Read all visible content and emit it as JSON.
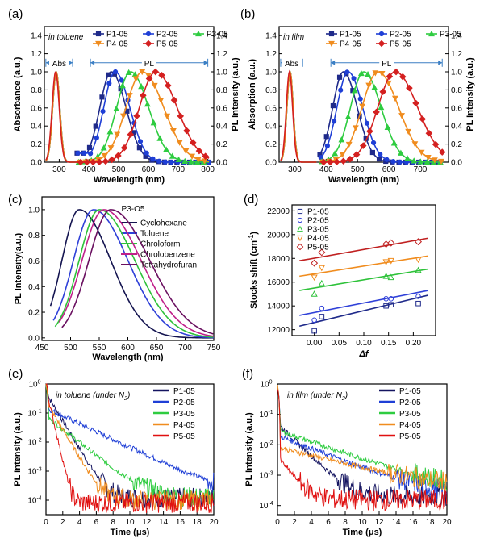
{
  "chart_data": [
    {
      "panel": "(a)",
      "type": "line",
      "note": "in toluene",
      "xlabel": "Wavelength (nm)",
      "ylabel": "Absorbance (a.u.)",
      "y2label": "PL Intensity (a.u.)",
      "xlim": [
        250,
        820
      ],
      "xticks": [
        300,
        400,
        500,
        600,
        700,
        800
      ],
      "ylim": [
        0,
        1.5
      ],
      "yticks": [
        "0.0",
        "0.2",
        "0.4",
        "0.6",
        "0.8",
        "1.0",
        "1.2",
        "1.4"
      ],
      "regions": [
        {
          "label": "Abs",
          "from": 255,
          "to": 345
        },
        {
          "label": "PL",
          "from": 405,
          "to": 800
        }
      ],
      "series": [
        {
          "name": "P1-05",
          "color": "#1f2a8a",
          "marker": "square",
          "abs_peak": 290,
          "abs_width": 12,
          "pl_peak": 475,
          "pl_width": 45
        },
        {
          "name": "P2-05",
          "color": "#1f3fd6",
          "marker": "circle",
          "abs_peak": 290,
          "abs_width": 12,
          "pl_peak": 488,
          "pl_width": 45
        },
        {
          "name": "P3-05",
          "color": "#2ecc40",
          "marker": "triangle-up",
          "abs_peak": 290,
          "abs_width": 12,
          "pl_peak": 540,
          "pl_width": 55
        },
        {
          "name": "P4-05",
          "color": "#f08c1e",
          "marker": "triangle-down",
          "abs_peak": 290,
          "abs_width": 12,
          "pl_peak": 580,
          "pl_width": 65
        },
        {
          "name": "P5-05",
          "color": "#d42020",
          "marker": "diamond",
          "abs_peak": 288,
          "abs_width": 12,
          "pl_peak": 625,
          "pl_width": 65
        }
      ]
    },
    {
      "panel": "(b)",
      "type": "line",
      "note": "in film",
      "xlabel": "Wavelength (nm)",
      "ylabel": "Absorption (a.u.)",
      "y2label": "PL Intensity (a.u.)",
      "xlim": [
        250,
        790
      ],
      "xticks": [
        300,
        400,
        500,
        600,
        700
      ],
      "ylim": [
        0,
        1.5
      ],
      "yticks": [
        "0.0",
        "0.2",
        "0.4",
        "0.6",
        "0.8",
        "1.0",
        "1.2",
        "1.4"
      ],
      "regions": [
        {
          "label": "Abs",
          "from": 255,
          "to": 325
        },
        {
          "label": "PL",
          "from": 415,
          "to": 770
        }
      ],
      "series": [
        {
          "name": "P1-05",
          "color": "#1f2a8a",
          "marker": "square",
          "abs_peak": 285,
          "abs_width": 10,
          "pl_peak": 455,
          "pl_width": 40
        },
        {
          "name": "P2-05",
          "color": "#1f3fd6",
          "marker": "circle",
          "abs_peak": 285,
          "abs_width": 10,
          "pl_peak": 470,
          "pl_width": 42
        },
        {
          "name": "P3-05",
          "color": "#2ecc40",
          "marker": "triangle-up",
          "abs_peak": 285,
          "abs_width": 10,
          "pl_peak": 520,
          "pl_width": 50
        },
        {
          "name": "P4-05",
          "color": "#f08c1e",
          "marker": "triangle-down",
          "abs_peak": 285,
          "abs_width": 10,
          "pl_peak": 565,
          "pl_width": 60
        },
        {
          "name": "P5-05",
          "color": "#d42020",
          "marker": "diamond",
          "abs_peak": 283,
          "abs_width": 10,
          "pl_peak": 620,
          "pl_width": 65
        }
      ]
    },
    {
      "panel": "(c)",
      "type": "line",
      "title": "P3-O5",
      "xlabel": "Wavelength (nm)",
      "ylabel": "PL Intensity(a.u.)",
      "xlim": [
        450,
        750
      ],
      "xticks": [
        450,
        500,
        550,
        600,
        650,
        700,
        750
      ],
      "ylim": [
        -0.02,
        1.1
      ],
      "yticks": [
        "0.0",
        "0.2",
        "0.4",
        "0.6",
        "0.8",
        "1.0"
      ],
      "series": [
        {
          "name": "Cyclohexane",
          "color": "#141450",
          "peak": 515,
          "x_start": 465,
          "width_left": 30,
          "width_right": 55
        },
        {
          "name": "Toluene",
          "color": "#2f40d8",
          "peak": 540,
          "x_start": 470,
          "width_left": 35,
          "width_right": 60
        },
        {
          "name": "Chroloform",
          "color": "#2ec23a",
          "peak": 550,
          "x_start": 473,
          "width_left": 35,
          "width_right": 62
        },
        {
          "name": "Chrolobenzene",
          "color": "#c0208a",
          "peak": 558,
          "x_start": 480,
          "width_left": 38,
          "width_right": 65
        },
        {
          "name": "Tetrahydrofuran",
          "color": "#6a1060",
          "peak": 570,
          "x_start": 485,
          "width_left": 38,
          "width_right": 68
        }
      ]
    },
    {
      "panel": "(d)",
      "type": "scatter",
      "xlabel": "Δf",
      "ylabel": "Stocks shift (cm",
      "ylabel_sup": "-1",
      "ylabel_end": ")",
      "xlim": [
        -0.045,
        0.245
      ],
      "xticks": [
        "0.00",
        "0.05",
        "0.10",
        "0.15",
        "0.20"
      ],
      "xtick_values": [
        0.0,
        0.05,
        0.1,
        0.15,
        0.2
      ],
      "ylim": [
        11500,
        22500
      ],
      "yticks": [
        12000,
        14000,
        16000,
        18000,
        20000,
        22000
      ],
      "fit_x": [
        -0.03,
        0.23
      ],
      "series": [
        {
          "name": "P1-05",
          "color": "#1f2a8a",
          "marker": "square",
          "x": [
            0.0,
            0.015,
            0.145,
            0.155,
            0.21
          ],
          "y": [
            11900,
            13100,
            14000,
            14100,
            14200
          ],
          "fit": [
            12300,
            14900
          ]
        },
        {
          "name": "P2-05",
          "color": "#2f40d8",
          "marker": "circle",
          "x": [
            0.0,
            0.015,
            0.145,
            0.155,
            0.21
          ],
          "y": [
            12800,
            13800,
            14600,
            14600,
            14800
          ],
          "fit": [
            13200,
            15300
          ]
        },
        {
          "name": "P3-05",
          "color": "#2ec23a",
          "marker": "triangle-up",
          "x": [
            0.0,
            0.015,
            0.145,
            0.155,
            0.21
          ],
          "y": [
            15000,
            15900,
            16500,
            16400,
            17000
          ],
          "fit": [
            15300,
            17100
          ]
        },
        {
          "name": "P4-05",
          "color": "#f08c1e",
          "marker": "triangle-down",
          "x": [
            0.0,
            0.015,
            0.145,
            0.155,
            0.21
          ],
          "y": [
            16400,
            17200,
            17700,
            17800,
            17900
          ],
          "fit": [
            16500,
            18200
          ]
        },
        {
          "name": "P5-05",
          "color": "#c02020",
          "marker": "diamond",
          "x": [
            0.0,
            0.015,
            0.145,
            0.155,
            0.21
          ],
          "y": [
            17600,
            18500,
            19200,
            19300,
            19400
          ],
          "fit": [
            17800,
            19700
          ]
        }
      ]
    },
    {
      "panel": "(e)",
      "type": "line",
      "scale": "log",
      "note": "in toluene (under N",
      "note_sub": "2",
      "note_end": ")",
      "xlabel": "Time (μs)",
      "ylabel": "PL Intensity (a.u.)",
      "xlim": [
        0,
        20
      ],
      "xticks": [
        0,
        2,
        4,
        6,
        8,
        10,
        12,
        14,
        16,
        18,
        20
      ],
      "ylim_exp": [
        -4.5,
        0
      ],
      "yticks": [
        {
          "base": "10",
          "exp": "0",
          "value": 0
        },
        {
          "base": "10",
          "exp": "-1",
          "value": -1
        },
        {
          "base": "10",
          "exp": "-2",
          "value": -2
        },
        {
          "base": "10",
          "exp": "-3",
          "value": -3
        },
        {
          "base": "10",
          "exp": "-4",
          "value": -4
        }
      ],
      "series": [
        {
          "name": "P1-05",
          "color": "#141460",
          "tau": 0.9,
          "amp": 0.5,
          "floor": 0.00012
        },
        {
          "name": "P2-05",
          "color": "#1f3fd6",
          "tau": 3.2,
          "amp": 0.15,
          "floor": 0.00012
        },
        {
          "name": "P3-05",
          "color": "#2ecc40",
          "tau": 1.9,
          "amp": 0.08,
          "floor": 0.00012
        },
        {
          "name": "P4-05",
          "color": "#f08c1e",
          "tau": 0.9,
          "amp": 0.25,
          "floor": 0.0001
        },
        {
          "name": "P5-05",
          "color": "#e01010",
          "tau": 0.35,
          "amp": 0.7,
          "floor": 8e-05
        }
      ]
    },
    {
      "panel": "(f)",
      "type": "line",
      "scale": "log",
      "note": "in film (under N",
      "note_sub": "2",
      "note_end": ")",
      "xlabel": "Time (μs)",
      "ylabel": "PL Intensity (a.u.)",
      "xlim": [
        0,
        20
      ],
      "xticks": [
        0,
        2,
        4,
        6,
        8,
        10,
        12,
        14,
        16,
        18,
        20
      ],
      "ylim_exp": [
        -4.3,
        0
      ],
      "yticks": [
        {
          "base": "10",
          "exp": "0",
          "value": 0
        },
        {
          "base": "10",
          "exp": "-1",
          "value": -1
        },
        {
          "base": "10",
          "exp": "-2",
          "value": -2
        },
        {
          "base": "10",
          "exp": "-3",
          "value": -3
        },
        {
          "base": "10",
          "exp": "-4",
          "value": -4
        }
      ],
      "series": [
        {
          "name": "P1-05",
          "color": "#141460",
          "tau": 1.6,
          "amp": 0.05,
          "floor": 0.0002
        },
        {
          "name": "P2-05",
          "color": "#1f3fd6",
          "tau": 4.0,
          "amp": 0.02,
          "floor": 0.0002
        },
        {
          "name": "P3-05",
          "color": "#2ecc40",
          "tau": 4.5,
          "amp": 0.03,
          "floor": 0.0003
        },
        {
          "name": "P4-05",
          "color": "#f08c1e",
          "tau": 6.0,
          "amp": 0.008,
          "floor": 0.0003
        },
        {
          "name": "P5-05",
          "color": "#e01010",
          "tau": 1.2,
          "amp": 0.004,
          "floor": 0.00015
        }
      ]
    }
  ]
}
